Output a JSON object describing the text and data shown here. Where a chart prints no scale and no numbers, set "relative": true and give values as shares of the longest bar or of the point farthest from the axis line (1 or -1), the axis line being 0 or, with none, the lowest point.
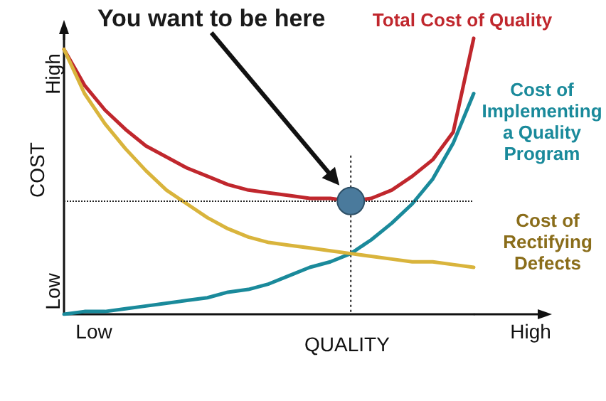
{
  "chart_data": {
    "type": "line",
    "relative": true,
    "xlabel": "QUALITY",
    "ylabel": "COST",
    "legend": false,
    "grid": false,
    "marker": "none",
    "line_style": "solid",
    "categories": [
      null,
      null,
      null,
      null,
      null,
      null,
      null,
      null,
      null,
      null,
      null,
      null,
      null,
      null,
      null,
      null,
      null,
      null,
      null,
      null,
      null
    ],
    "series": [
      {
        "name": "Total Cost of Quality",
        "color": "#c0272d",
        "values": [
          0.96,
          0.83,
          0.74,
          0.67,
          0.61,
          0.57,
          0.53,
          0.5,
          0.47,
          0.45,
          0.44,
          0.43,
          0.42,
          0.42,
          0.41,
          0.42,
          0.45,
          0.5,
          0.56,
          0.66,
          1
        ]
      },
      {
        "name": "Cost of Implementing a Quality Program",
        "color": "#1a8a9b",
        "values": [
          0,
          0.01,
          0.01,
          0.02,
          0.03,
          0.04,
          0.05,
          0.06,
          0.08,
          0.09,
          0.11,
          0.14,
          0.17,
          0.19,
          0.22,
          0.27,
          0.33,
          0.4,
          0.49,
          0.62,
          0.8
        ]
      },
      {
        "name": "Cost of Rectifying Defects",
        "color": "#d9b43c",
        "values": [
          0.96,
          0.8,
          0.69,
          0.6,
          0.52,
          0.45,
          0.4,
          0.35,
          0.31,
          0.28,
          0.26,
          0.25,
          0.24,
          0.23,
          0.22,
          0.21,
          0.2,
          0.19,
          0.19,
          0.18,
          0.17
        ]
      }
    ],
    "ref_lines": [
      {
        "axis": "y",
        "value": 0.41,
        "line_style": "dotted",
        "color": "#222222"
      }
    ],
    "annotations": [
      "You want to be here",
      "High",
      "Low",
      "Low",
      "High"
    ]
  }
}
